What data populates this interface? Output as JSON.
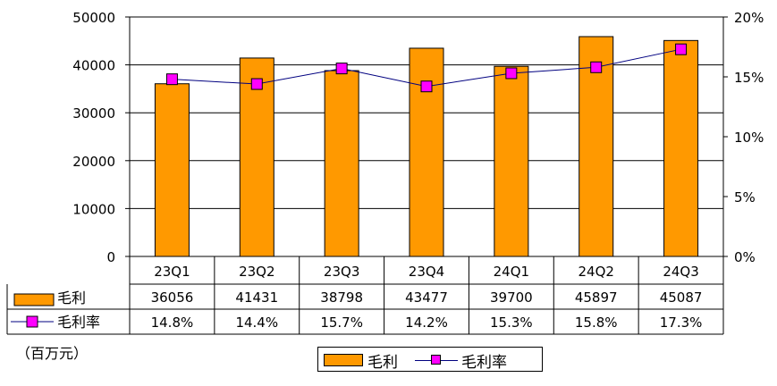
{
  "chart_data": {
    "type": "bar",
    "categories": [
      "23Q1",
      "23Q2",
      "23Q3",
      "23Q4",
      "24Q1",
      "24Q2",
      "24Q3"
    ],
    "series": [
      {
        "name": "毛利",
        "type": "bar",
        "axis": "left",
        "values": [
          36056,
          41431,
          38798,
          43477,
          39700,
          45897,
          45087
        ],
        "color": "#FF9900"
      },
      {
        "name": "毛利率",
        "type": "line",
        "axis": "right",
        "values": [
          14.8,
          14.4,
          15.7,
          14.2,
          15.3,
          15.8,
          17.3
        ],
        "labels": [
          "14.8%",
          "14.4%",
          "15.7%",
          "14.2%",
          "15.3%",
          "15.8%",
          "17.3%"
        ],
        "line_color": "#000080",
        "marker_color": "#FF00FF"
      }
    ],
    "y_left": {
      "ticks": [
        "0",
        "10000",
        "20000",
        "30000",
        "40000",
        "50000"
      ],
      "ylim": [
        0,
        50000
      ]
    },
    "y_right": {
      "ticks": [
        "0%",
        "5%",
        "10%",
        "15%",
        "20%"
      ],
      "ylim": [
        0,
        20
      ]
    },
    "grid": true,
    "unit_label": "（百万元）",
    "legend_position": "bottom"
  }
}
